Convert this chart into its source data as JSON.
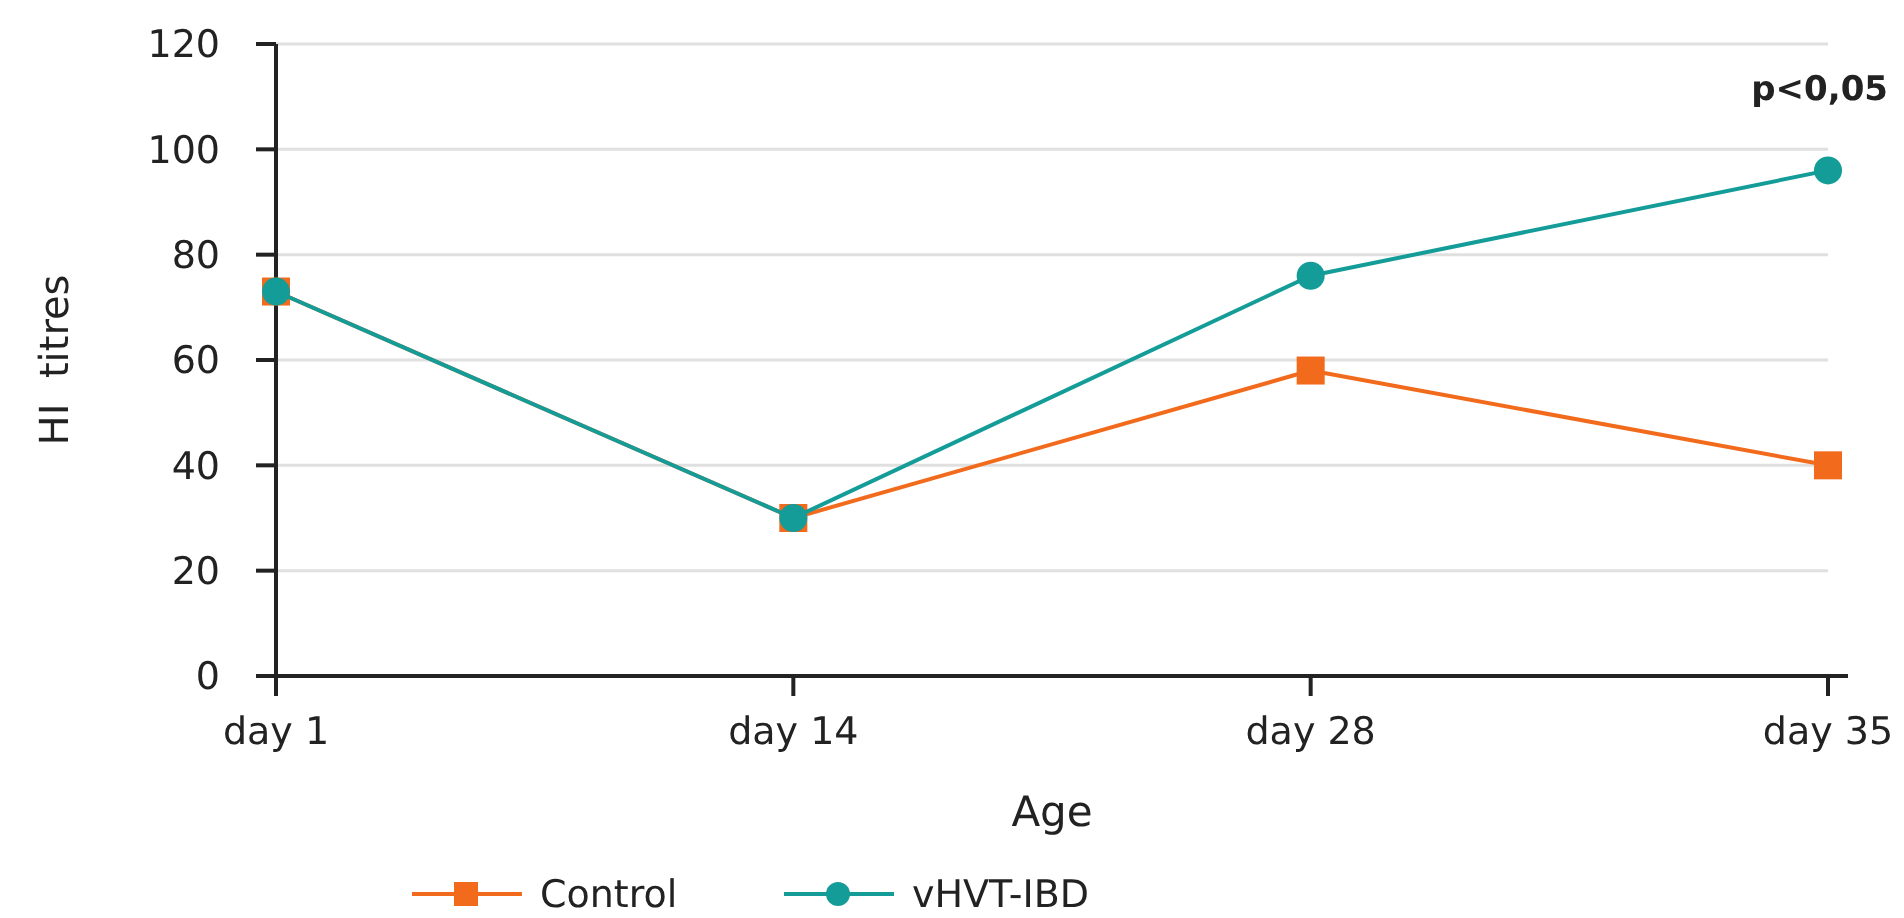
{
  "chart_data": {
    "type": "line",
    "xlabel": "Age",
    "ylabel": "HI  titres",
    "categories": [
      "day 1",
      "day 14",
      "day 28",
      "day 35"
    ],
    "series": [
      {
        "name": "Control",
        "color": "#f26b1d",
        "marker": "square",
        "values": [
          73,
          30,
          58,
          40
        ]
      },
      {
        "name": "vHVT-IBD",
        "color": "#139c98",
        "marker": "circle",
        "values": [
          73,
          30,
          76,
          96
        ]
      }
    ],
    "ylim": [
      0,
      120
    ],
    "yticks": [
      0,
      20,
      40,
      60,
      80,
      100,
      120
    ],
    "grid": "y",
    "legend": "bottom",
    "line_style": "solid",
    "annotations": [
      "p<0,05"
    ]
  }
}
